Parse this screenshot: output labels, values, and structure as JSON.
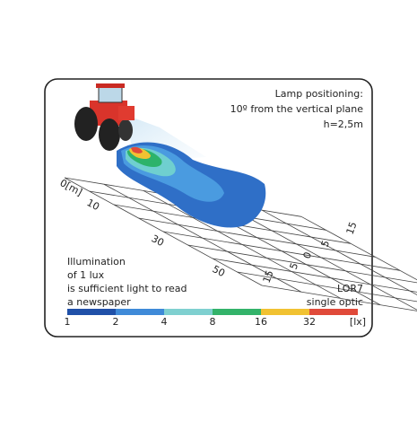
{
  "header": {
    "lines": [
      "Lamp positioning:",
      "10º from the vertical plane",
      "h=2,5m"
    ]
  },
  "distance_labels": [
    "0[m]",
    "10",
    "30",
    "50"
  ],
  "lateral_labels": [
    "15",
    "5",
    "0",
    "5",
    "15"
  ],
  "note": {
    "lines": [
      "Illumination",
      "of 1 lux",
      "is sufficient light to read",
      "a newspaper"
    ]
  },
  "product": {
    "lines": [
      "LOR7",
      "single optic"
    ]
  },
  "scale": {
    "labels": [
      "1",
      "2",
      "4",
      "8",
      "16",
      "32",
      "[lx]"
    ]
  }
}
